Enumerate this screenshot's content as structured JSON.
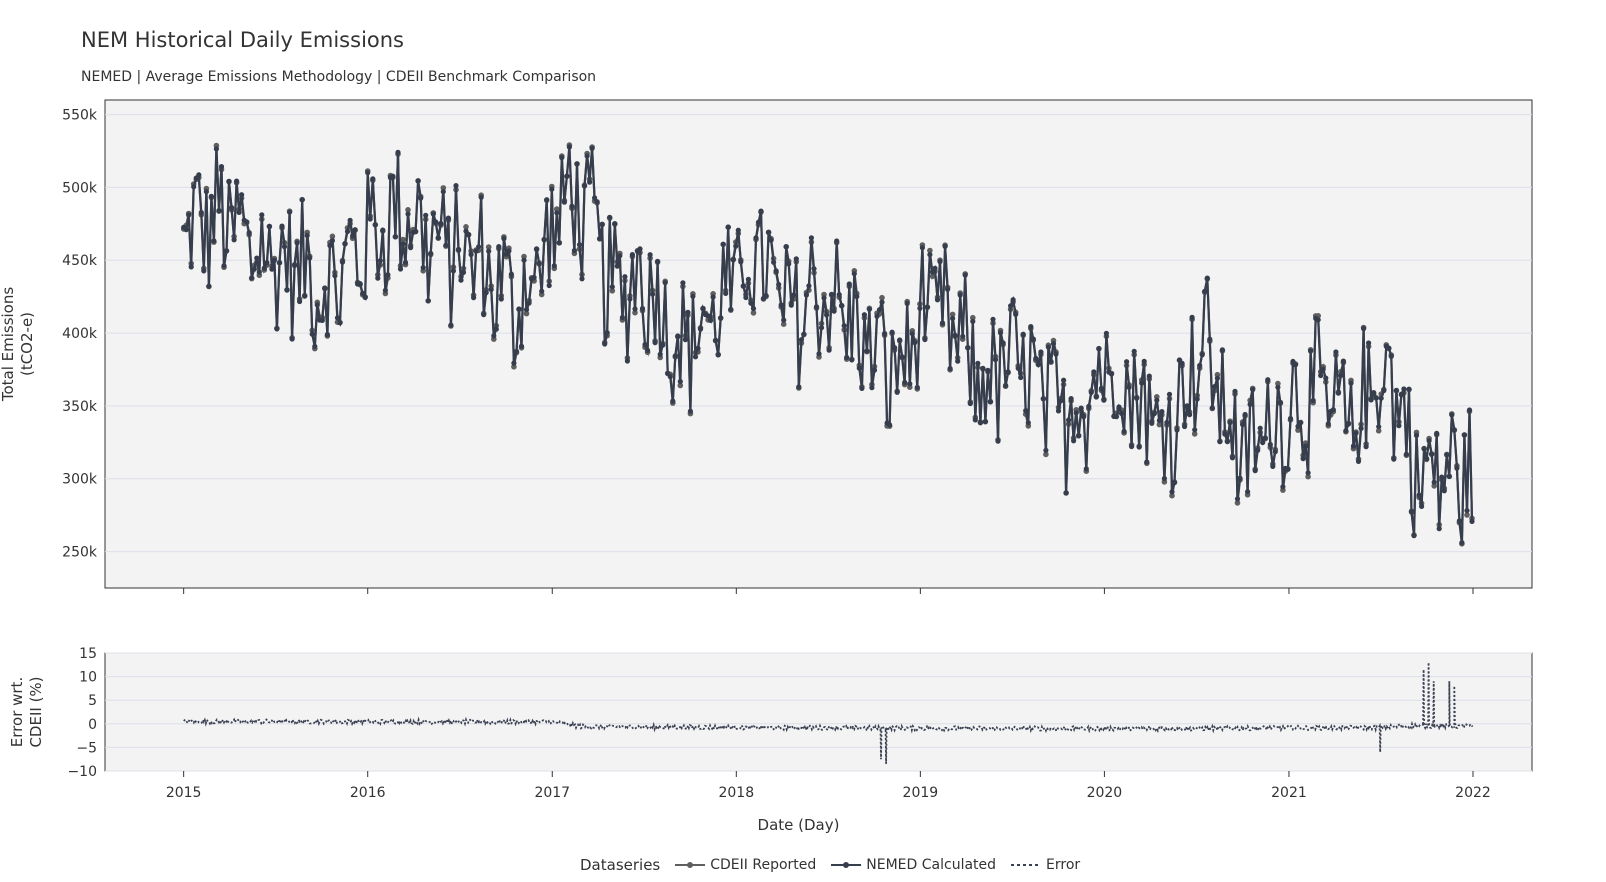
{
  "title": "NEM Historical Daily Emissions",
  "subtitle": "NEMED | Average Emissions Methodology | CDEII Benchmark Comparison",
  "colors": {
    "panel_bg": "#f3f3f3",
    "grid": "#dde0ea",
    "cdeii": "#5f5f5f",
    "nemed": "#363d4d",
    "error": "#3a4152"
  },
  "chart_data": [
    {
      "type": "line",
      "panel": "top",
      "ylabel_lines": [
        "Total Emissions",
        "(tCO2-e)"
      ],
      "ylim": [
        225000,
        560000
      ],
      "yticks": [
        250000,
        300000,
        350000,
        400000,
        450000,
        500000,
        550000
      ],
      "ytick_labels": [
        "250k",
        "300k",
        "350k",
        "400k",
        "450k",
        "500k",
        "550k"
      ],
      "grid": true,
      "series": [
        {
          "name": "CDEII Reported",
          "style": "line+markers"
        },
        {
          "name": "NEMED Calculated",
          "style": "line+markers"
        }
      ],
      "trend_points": [
        [
          "2015-01-01",
          470000
        ],
        [
          "2015-03-15",
          480000
        ],
        [
          "2015-06-01",
          455000
        ],
        [
          "2015-08-15",
          445000
        ],
        [
          "2015-10-15",
          430000
        ],
        [
          "2016-01-01",
          465000
        ],
        [
          "2016-03-15",
          485000
        ],
        [
          "2016-05-15",
          460000
        ],
        [
          "2016-08-01",
          450000
        ],
        [
          "2016-10-20",
          420000
        ],
        [
          "2016-12-15",
          450000
        ],
        [
          "2017-02-01",
          500000
        ],
        [
          "2017-03-25",
          470000
        ],
        [
          "2017-05-01",
          425000
        ],
        [
          "2017-07-01",
          440000
        ],
        [
          "2017-09-15",
          390000
        ],
        [
          "2017-12-01",
          420000
        ],
        [
          "2018-02-10",
          455000
        ],
        [
          "2018-04-15",
          410000
        ],
        [
          "2018-06-20",
          430000
        ],
        [
          "2018-09-01",
          400000
        ],
        [
          "2018-11-15",
          370000
        ],
        [
          "2019-01-15",
          420000
        ],
        [
          "2019-03-10",
          400000
        ],
        [
          "2019-05-01",
          365000
        ],
        [
          "2019-07-15",
          380000
        ],
        [
          "2019-10-01",
          340000
        ],
        [
          "2020-01-20",
          380000
        ],
        [
          "2020-03-01",
          360000
        ],
        [
          "2020-05-01",
          330000
        ],
        [
          "2020-07-15",
          395000
        ],
        [
          "2020-10-01",
          310000
        ],
        [
          "2020-12-15",
          345000
        ],
        [
          "2021-02-15",
          360000
        ],
        [
          "2021-05-01",
          335000
        ],
        [
          "2021-07-15",
          380000
        ],
        [
          "2021-09-15",
          300000
        ],
        [
          "2021-11-15",
          305000
        ],
        [
          "2021-12-31",
          300000
        ]
      ],
      "approx_amplitude": 55000
    },
    {
      "type": "line",
      "panel": "bottom",
      "ylabel_lines": [
        "Error wrt.",
        "CDEII (%)"
      ],
      "ylim": [
        -10,
        15
      ],
      "yticks": [
        -10,
        -5,
        0,
        5,
        10,
        15
      ],
      "ytick_labels": [
        "−10",
        "−5",
        "0",
        "5",
        "10",
        "15"
      ],
      "grid": true,
      "series": [
        {
          "name": "Error",
          "style": "dotted"
        }
      ],
      "baseline_points": [
        [
          "2015-01-01",
          0.5
        ],
        [
          "2016-12-31",
          0.4
        ],
        [
          "2017-03-01",
          -0.6
        ],
        [
          "2018-09-30",
          -0.9
        ],
        [
          "2019-06-30",
          -1.0
        ],
        [
          "2020-06-30",
          -1.0
        ],
        [
          "2021-06-30",
          -0.8
        ],
        [
          "2021-08-30",
          -0.4
        ],
        [
          "2021-12-31",
          -0.5
        ]
      ],
      "spikes": [
        {
          "date": "2018-10-15",
          "value": -7.5
        },
        {
          "date": "2018-10-25",
          "value": -8.5
        },
        {
          "date": "2021-07-01",
          "value": -6
        },
        {
          "date": "2021-09-25",
          "value": 11.5
        },
        {
          "date": "2021-10-05",
          "value": 13
        },
        {
          "date": "2021-10-15",
          "value": 9
        },
        {
          "date": "2021-11-15",
          "value": 9
        },
        {
          "date": "2021-11-25",
          "value": 8
        }
      ]
    }
  ],
  "x_axis": {
    "label": "Date (Day)",
    "range": [
      "2014-07-29",
      "2022-04-28"
    ],
    "ticks": [
      "2015-01-01",
      "2016-01-01",
      "2017-01-01",
      "2018-01-01",
      "2019-01-01",
      "2020-01-01",
      "2021-01-01",
      "2022-01-01"
    ],
    "tick_labels": [
      "2015",
      "2016",
      "2017",
      "2018",
      "2019",
      "2020",
      "2021",
      "2022"
    ]
  },
  "legend": {
    "title": "Dataseries",
    "items": [
      "CDEII Reported",
      "NEMED Calculated",
      "Error"
    ]
  }
}
